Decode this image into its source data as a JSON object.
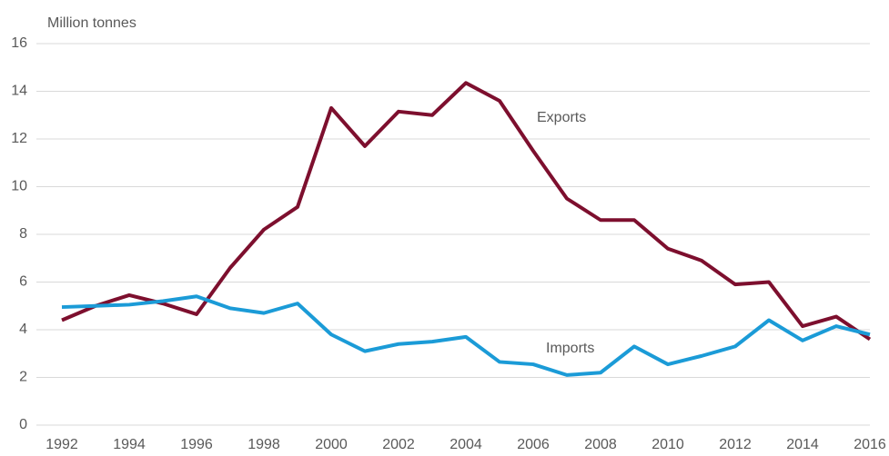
{
  "chart_data": {
    "type": "line",
    "y_label": "Million tonnes",
    "x": [
      1992,
      1993,
      1994,
      1995,
      1996,
      1997,
      1998,
      1999,
      2000,
      2001,
      2002,
      2003,
      2004,
      2005,
      2006,
      2007,
      2008,
      2009,
      2010,
      2011,
      2012,
      2013,
      2014,
      2015,
      2016
    ],
    "series": [
      {
        "name": "Exports",
        "color": "#7d0f2e",
        "values": [
          4.4,
          5.0,
          5.45,
          5.1,
          4.65,
          6.6,
          8.2,
          9.15,
          13.3,
          11.7,
          13.15,
          13.0,
          14.35,
          13.6,
          11.5,
          9.5,
          8.6,
          8.6,
          7.4,
          6.9,
          5.9,
          6.0,
          4.15,
          4.55,
          3.6
        ]
      },
      {
        "name": "Imports",
        "color": "#1b9bd7",
        "values": [
          4.95,
          5.0,
          5.05,
          5.2,
          5.4,
          4.9,
          4.7,
          5.1,
          3.8,
          3.1,
          3.4,
          3.5,
          3.7,
          2.65,
          2.55,
          2.1,
          2.2,
          3.3,
          2.55,
          2.9,
          3.3,
          4.4,
          3.55,
          4.15,
          3.8
        ]
      }
    ],
    "xlim": [
      1992,
      2016
    ],
    "xticks": [
      1992,
      1994,
      1996,
      1998,
      2000,
      2002,
      2004,
      2006,
      2008,
      2010,
      2012,
      2014,
      2016
    ],
    "ylim": [
      0,
      16
    ],
    "yticks": [
      0,
      2,
      4,
      6,
      8,
      10,
      12,
      14,
      16
    ],
    "grid": true
  }
}
